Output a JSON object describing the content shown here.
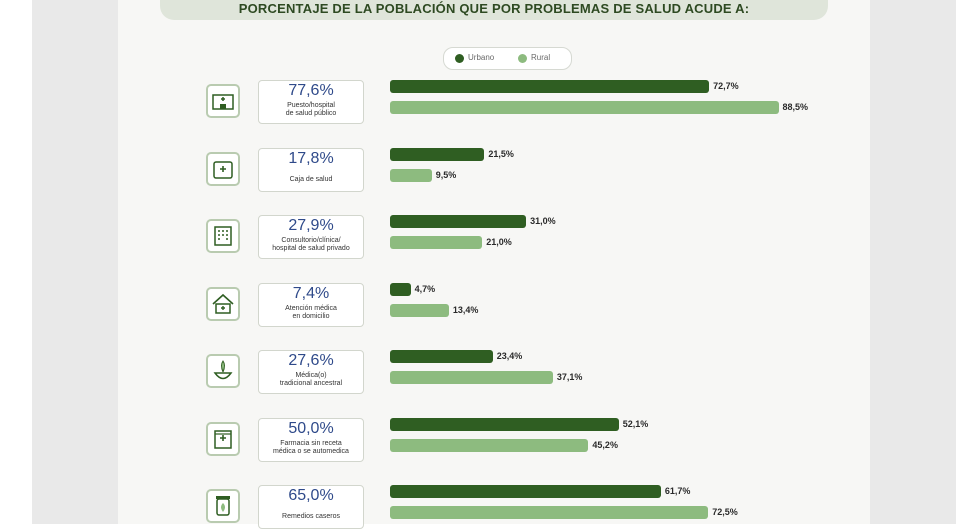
{
  "title": "PORCENTAJE DE LA POBLACIÓN QUE POR PROBLEMAS DE SALUD ACUDE A:",
  "legend": {
    "urban": "Urbano",
    "rural": "Rural"
  },
  "colors": {
    "urban": "#2f5e22",
    "rural": "#8dbb7f",
    "percent": "#2f4a8a"
  },
  "chart_data": {
    "type": "bar",
    "orientation": "horizontal",
    "title": "PORCENTAJE DE LA POBLACIÓN QUE POR PROBLEMAS DE SALUD ACUDE A:",
    "legend_position": "top-center",
    "grid": false,
    "xlim": [
      0,
      100
    ],
    "series_names": [
      "Urbano",
      "Rural"
    ],
    "categories": [
      {
        "icon": "hospital-icon",
        "total": "77,6%",
        "label_lines": [
          "Puesto/hospital",
          "de salud público"
        ],
        "urban": 72.7,
        "rural": 88.5,
        "urban_label": "72,7%",
        "rural_label": "88,5%"
      },
      {
        "icon": "health-insurance-icon",
        "total": "17,8%",
        "label_lines": [
          "Caja de salud"
        ],
        "urban": 21.5,
        "rural": 9.5,
        "urban_label": "21,5%",
        "rural_label": "9,5%"
      },
      {
        "icon": "clinic-icon",
        "total": "27,9%",
        "label_lines": [
          "Consultorio/clínica/",
          "hospital de salud privado"
        ],
        "urban": 31.0,
        "rural": 21.0,
        "urban_label": "31,0%",
        "rural_label": "21,0%"
      },
      {
        "icon": "home-care-icon",
        "total": "7,4%",
        "label_lines": [
          "Atención médica",
          "en domicilio"
        ],
        "urban": 4.7,
        "rural": 13.4,
        "urban_label": "4,7%",
        "rural_label": "13,4%"
      },
      {
        "icon": "traditional-medicine-icon",
        "total": "27,6%",
        "label_lines": [
          "Médica(o)",
          "tradicional ancestral"
        ],
        "urban": 23.4,
        "rural": 37.1,
        "urban_label": "23,4%",
        "rural_label": "37,1%"
      },
      {
        "icon": "pharmacy-icon",
        "total": "50,0%",
        "label_lines": [
          "Farmacia sin receta",
          "médica o se automedica"
        ],
        "urban": 52.1,
        "rural": 45.2,
        "urban_label": "52,1%",
        "rural_label": "45,2%"
      },
      {
        "icon": "home-remedy-icon",
        "total": "65,0%",
        "label_lines": [
          "Remedios caseros"
        ],
        "urban": 61.7,
        "rural": 72.5,
        "urban_label": "61,7%",
        "rural_label": "72,5%"
      }
    ]
  }
}
